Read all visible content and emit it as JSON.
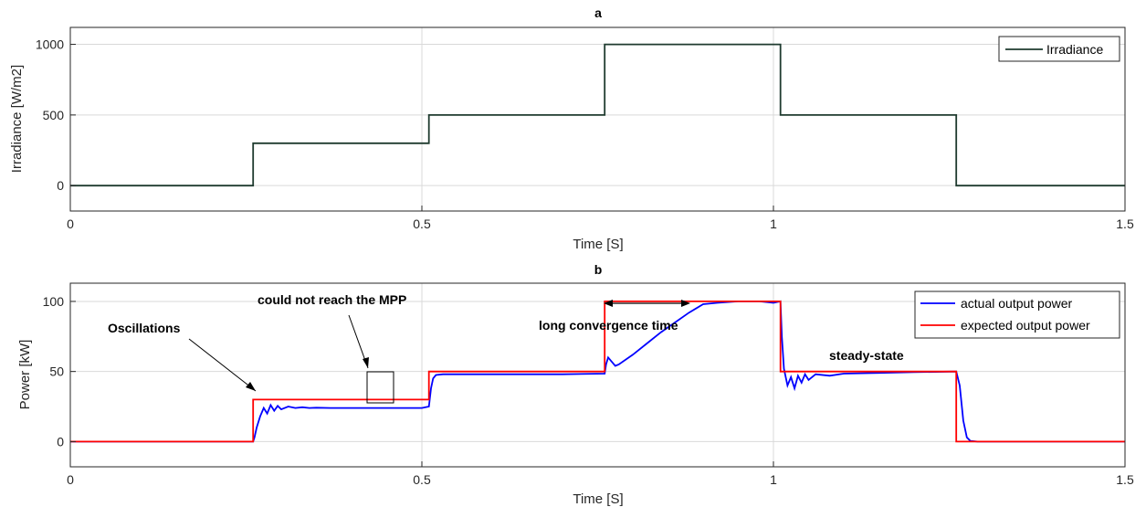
{
  "chart_data": [
    {
      "type": "line",
      "title": "a",
      "xlabel": "Time [S]",
      "ylabel": "Irradiance [W/m2]",
      "xlim": [
        0,
        1.5
      ],
      "ylim": [
        -180,
        1120
      ],
      "xticks": [
        0,
        0.5,
        1,
        1.5
      ],
      "xtick_labels": [
        "0",
        "0.5",
        "1",
        "1.5"
      ],
      "yticks": [
        0,
        500,
        1000
      ],
      "ytick_labels": [
        "0",
        "500",
        "1000"
      ],
      "grid": true,
      "legend_position": "top-right",
      "series": [
        {
          "name": "Irradiance",
          "color": "#1f3b2f",
          "x": [
            0,
            0.26,
            0.26,
            0.51,
            0.51,
            0.76,
            0.76,
            1.01,
            1.01,
            1.26,
            1.26,
            1.5
          ],
          "y": [
            0,
            0,
            300,
            300,
            500,
            500,
            1000,
            1000,
            500,
            500,
            0,
            0
          ]
        }
      ]
    },
    {
      "type": "line",
      "title": "b",
      "xlabel": "Time [S]",
      "ylabel": "Power [kW]",
      "xlim": [
        0,
        1.5
      ],
      "ylim": [
        -18,
        113
      ],
      "xticks": [
        0,
        0.5,
        1,
        1.5
      ],
      "xtick_labels": [
        "0",
        "0.5",
        "1",
        "1.5"
      ],
      "yticks": [
        0,
        50,
        100
      ],
      "ytick_labels": [
        "0",
        "50",
        "100"
      ],
      "grid": true,
      "legend_position": "top-right",
      "series": [
        {
          "name": "actual output power",
          "color": "#0000ff",
          "x": [
            0,
            0.26,
            0.262,
            0.265,
            0.27,
            0.275,
            0.28,
            0.285,
            0.29,
            0.295,
            0.3,
            0.31,
            0.32,
            0.33,
            0.34,
            0.35,
            0.37,
            0.4,
            0.45,
            0.5,
            0.51,
            0.513,
            0.516,
            0.52,
            0.53,
            0.6,
            0.7,
            0.76,
            0.762,
            0.765,
            0.77,
            0.775,
            0.78,
            0.8,
            0.82,
            0.84,
            0.86,
            0.88,
            0.9,
            0.92,
            0.95,
            0.98,
            1.0,
            1.01,
            1.012,
            1.015,
            1.02,
            1.025,
            1.03,
            1.035,
            1.04,
            1.045,
            1.05,
            1.06,
            1.08,
            1.1,
            1.15,
            1.2,
            1.26,
            1.265,
            1.27,
            1.275,
            1.28,
            1.29,
            1.5
          ],
          "y": [
            0,
            0,
            3,
            10,
            18,
            24,
            20,
            26,
            22,
            25.5,
            23,
            25,
            24,
            24.5,
            24,
            24.2,
            24,
            24,
            24,
            24,
            25,
            38,
            45,
            47.5,
            48,
            48,
            48,
            48.5,
            55,
            60,
            57,
            54,
            55,
            62,
            70,
            78,
            85,
            92,
            98,
            99,
            100,
            100,
            99,
            100,
            75,
            52,
            40,
            46,
            38,
            47,
            42,
            48,
            44,
            48,
            47,
            48.5,
            49,
            49.5,
            50,
            40,
            15,
            3,
            0.5,
            0,
            0
          ]
        },
        {
          "name": "expected output power",
          "color": "#ff0000",
          "x": [
            0,
            0.26,
            0.26,
            0.51,
            0.51,
            0.76,
            0.76,
            1.01,
            1.01,
            1.26,
            1.26,
            1.5
          ],
          "y": [
            0,
            0,
            30,
            30,
            50,
            50,
            100,
            100,
            50,
            50,
            0,
            0
          ]
        }
      ],
      "annotations": [
        {
          "text": "Oscillations"
        },
        {
          "text": "could not reach the MPP"
        },
        {
          "text": "long convergence time"
        },
        {
          "text": "steady-state"
        }
      ]
    }
  ]
}
